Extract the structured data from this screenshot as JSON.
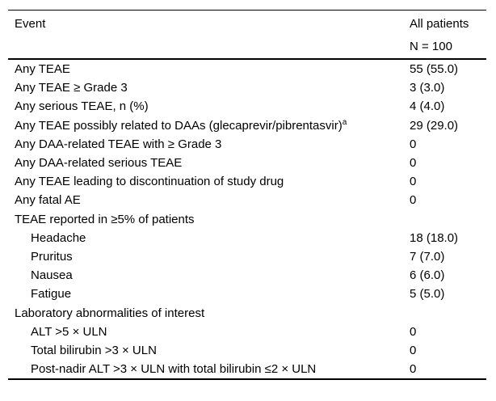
{
  "table": {
    "header": {
      "event": "Event",
      "group": "All patients",
      "n": "N = 100"
    },
    "rows": [
      {
        "label": "Any TEAE",
        "value": "55 (55.0)"
      },
      {
        "label": "Any TEAE ≥ Grade 3",
        "value": "3 (3.0)"
      },
      {
        "label": "Any serious TEAE, n (%)",
        "value": "4 (4.0)"
      },
      {
        "label": "Any TEAE possibly related to DAAs (glecaprevir/pibrentasvir)",
        "superscript": "a",
        "value": "29 (29.0)"
      },
      {
        "label": "Any DAA-related TEAE with ≥ Grade 3",
        "value": "0"
      },
      {
        "label": "Any DAA-related serious TEAE",
        "value": "0"
      },
      {
        "label": "Any TEAE leading to discontinuation of study drug",
        "value": "0"
      },
      {
        "label": "Any fatal AE",
        "value": "0"
      },
      {
        "label": "TEAE reported in ≥5% of patients",
        "value": ""
      },
      {
        "label": "Headache",
        "value": "18 (18.0)"
      },
      {
        "label": "Pruritus",
        "value": "7 (7.0)"
      },
      {
        "label": "Nausea",
        "value": "6 (6.0)"
      },
      {
        "label": "Fatigue",
        "value": "5 (5.0)"
      },
      {
        "label": "Laboratory abnormalities of interest",
        "value": ""
      },
      {
        "label": "ALT >5 × ULN",
        "value": "0"
      },
      {
        "label": "Total bilirubin >3 × ULN",
        "value": "0"
      },
      {
        "label": "Post-nadir ALT >3 × ULN with total bilirubin ≤2 × ULN",
        "value": "0"
      }
    ]
  }
}
